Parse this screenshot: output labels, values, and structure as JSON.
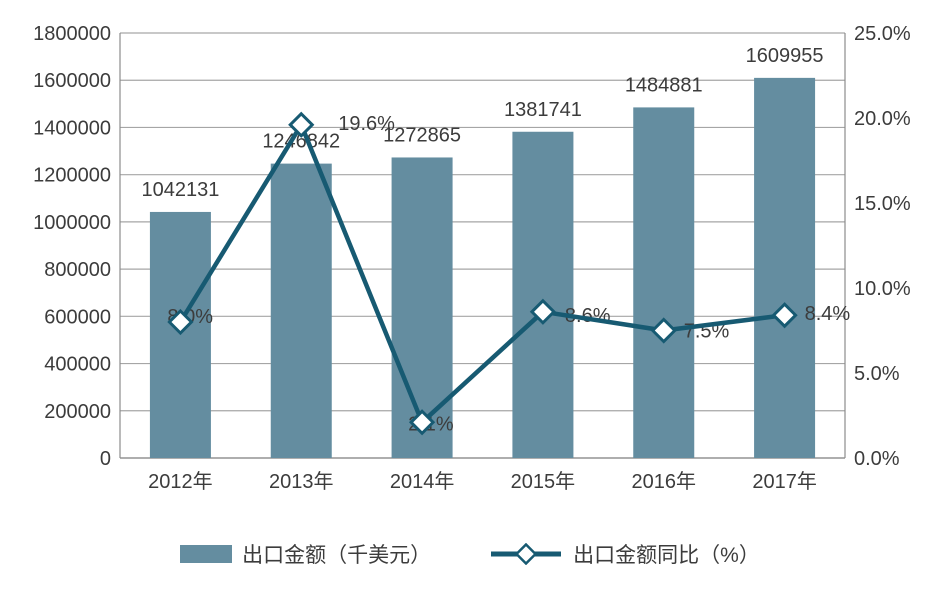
{
  "chart_data": {
    "type": "combo",
    "categories": [
      "2012年",
      "2013年",
      "2014年",
      "2015年",
      "2016年",
      "2017年"
    ],
    "series": [
      {
        "name": "出口金额（千美元）",
        "type": "bar",
        "axis": "left",
        "values": [
          1042131,
          1246842,
          1272865,
          1381741,
          1484881,
          1609955
        ],
        "data_labels": [
          "1042131",
          "1246842",
          "1272865",
          "1381741",
          "1484881",
          "1609955"
        ],
        "color": "#648da0"
      },
      {
        "name": "出口金额同比（%）",
        "type": "line",
        "axis": "right",
        "values": [
          8.0,
          19.6,
          2.1,
          8.6,
          7.5,
          8.4
        ],
        "data_labels": [
          "8.0%",
          "19.6%",
          "2.1%",
          "8.6%",
          "7.5%",
          "8.4%"
        ],
        "color": "#175a72",
        "marker": "diamond",
        "marker_fill": "#ffffff"
      }
    ],
    "left_axis": {
      "min": 0,
      "max": 1800000,
      "step": 200000,
      "tick_labels": [
        "0",
        "200000",
        "400000",
        "600000",
        "800000",
        "1000000",
        "1200000",
        "1400000",
        "1600000",
        "1800000"
      ]
    },
    "right_axis": {
      "min": 0,
      "max": 25,
      "step": 5,
      "tick_labels": [
        "0.0%",
        "5.0%",
        "10.0%",
        "15.0%",
        "20.0%",
        "25.0%"
      ]
    },
    "grid": true,
    "legend_position": "bottom",
    "title": "",
    "colors": {
      "grid": "#a6a6a6",
      "axis": "#8c8c8c",
      "text": "#3c3c3c",
      "background": "#ffffff"
    }
  }
}
